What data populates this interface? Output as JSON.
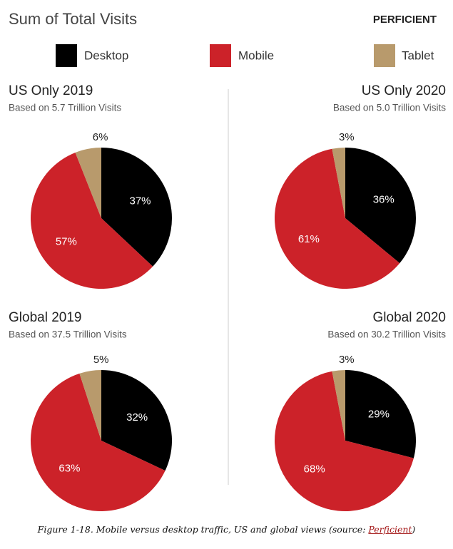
{
  "title": "Sum of Total Visits",
  "logo": "PERFICIENT",
  "legend": [
    {
      "name": "Desktop",
      "color": "#000000"
    },
    {
      "name": "Mobile",
      "color": "#cc2229"
    },
    {
      "name": "Tablet",
      "color": "#b89a6c"
    }
  ],
  "chart_data": [
    {
      "type": "pie",
      "title": "US Only 2019",
      "subtitle": "Based on 5.7 Trillion Visits",
      "values": [
        37,
        57,
        6
      ],
      "value_labels": [
        "37%",
        "57%",
        "6%"
      ]
    },
    {
      "type": "pie",
      "title": "US Only 2020",
      "subtitle": "Based on 5.0 Trillion Visits",
      "values": [
        36,
        61,
        3
      ],
      "value_labels": [
        "36%",
        "61%",
        "3%"
      ]
    },
    {
      "type": "pie",
      "title": "Global 2019",
      "subtitle": "Based on 37.5 Trillion Visits",
      "values": [
        32,
        63,
        5
      ],
      "value_labels": [
        "32%",
        "63%",
        "5%"
      ]
    },
    {
      "type": "pie",
      "title": "Global 2020",
      "subtitle": "Based on 30.2 Trillion Visits",
      "values": [
        29,
        68,
        3
      ],
      "value_labels": [
        "29%",
        "68%",
        "3%"
      ]
    }
  ],
  "caption": {
    "before": "Figure 1-18. Mobile versus desktop traffic, US and global views (source: ",
    "link": "Perficient",
    "after": ")"
  }
}
